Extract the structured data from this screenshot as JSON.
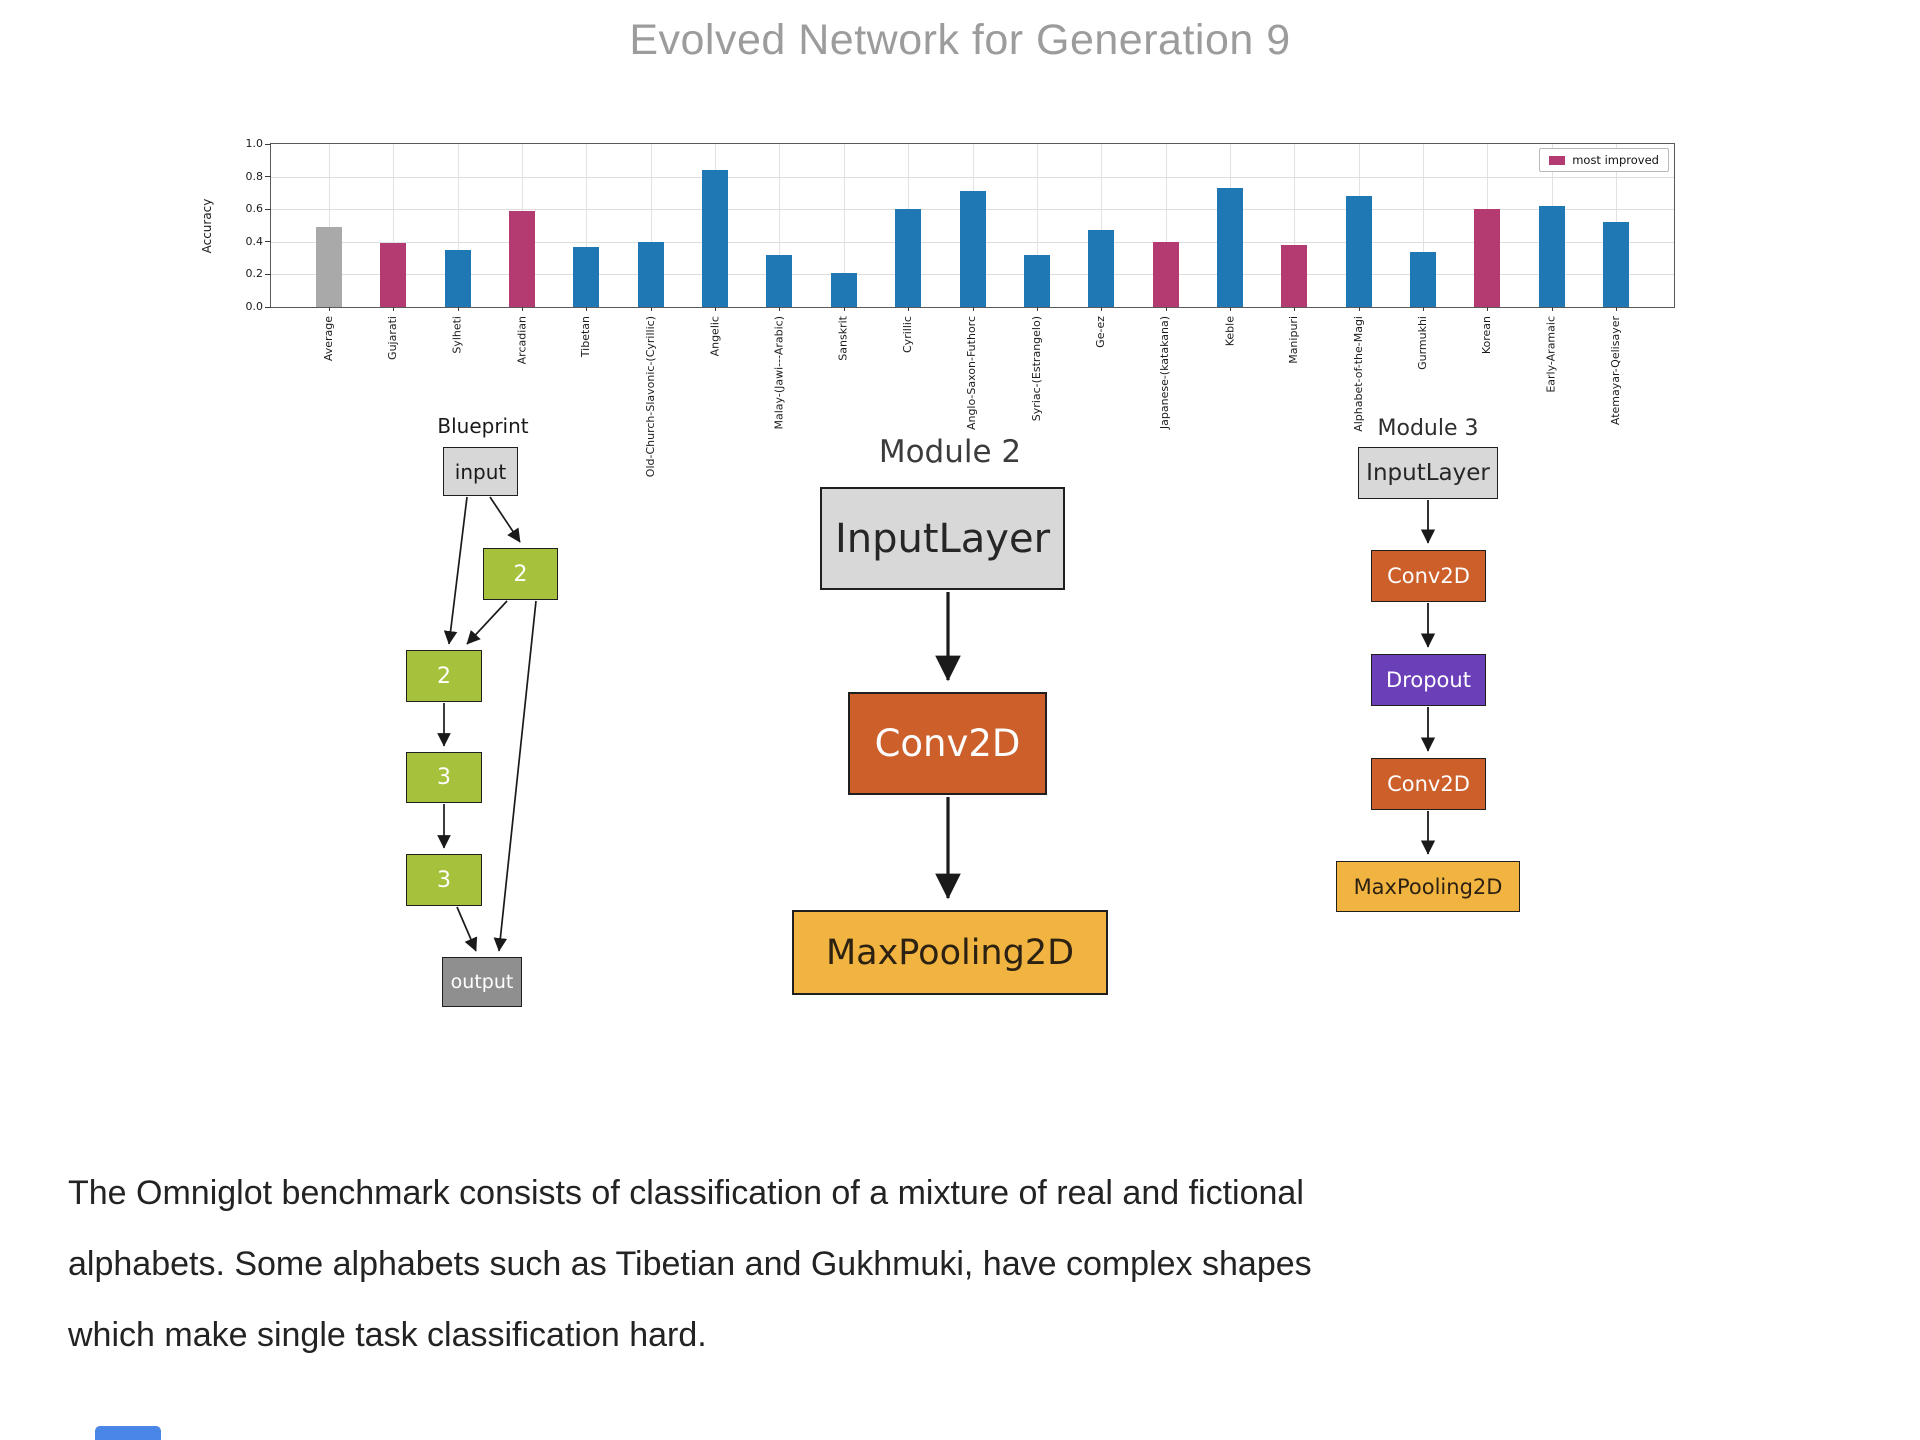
{
  "title": "Evolved Network for Generation 9",
  "chart_data": {
    "type": "bar",
    "title": "",
    "xlabel": "",
    "ylabel": "Accuracy",
    "ylim": [
      0,
      1.0
    ],
    "yticks": [
      "0.0",
      "0.2",
      "0.4",
      "0.6",
      "0.8",
      "1.0"
    ],
    "grid": true,
    "legend_position": "upper right",
    "legend": [
      {
        "label": "most improved",
        "color_key": "highlight"
      }
    ],
    "palette": {
      "default": "#1f77b4",
      "highlight": "#b33b72",
      "average": "#a9a9a9"
    },
    "categories": [
      "Average",
      "Gujarati",
      "Sylheti",
      "Arcadian",
      "Tibetan",
      "Old-Church-Slavonic-(Cyrillic)",
      "Angelic",
      "Malay-(Jawi---Arabic)",
      "Sanskrit",
      "Cyrillic",
      "Anglo-Saxon-Futhorc",
      "Syriac-(Estrangelo)",
      "Ge-ez",
      "Japanese-(katakana)",
      "Keble",
      "Manipuri",
      "Alphabet-of-the-Magi",
      "Gurmukhi",
      "Korean",
      "Early-Aramaic",
      "Atemayar-Qelisayer"
    ],
    "values": [
      0.49,
      0.39,
      0.35,
      0.59,
      0.37,
      0.4,
      0.84,
      0.32,
      0.21,
      0.6,
      0.71,
      0.32,
      0.475,
      0.4,
      0.73,
      0.38,
      0.68,
      0.34,
      0.6,
      0.62,
      0.52
    ],
    "bar_colors": [
      "average",
      "highlight",
      "default",
      "highlight",
      "default",
      "default",
      "default",
      "default",
      "default",
      "default",
      "default",
      "default",
      "default",
      "highlight",
      "default",
      "highlight",
      "default",
      "default",
      "highlight",
      "default",
      "default"
    ]
  },
  "diagrams": {
    "node_palette": {
      "io": {
        "bg": "#d7d7d7",
        "fg": "#1a1a1a"
      },
      "module": {
        "bg": "#a6c13c",
        "fg": "#ffffff"
      },
      "output": {
        "bg": "#8f8f8f",
        "fg": "#ffffff"
      },
      "input": {
        "bg": "#d8d8d8",
        "fg": "#262626"
      },
      "conv": {
        "bg": "#cc5f2a",
        "fg": "#fdfdfd"
      },
      "dropout": {
        "bg": "#6a3fb8",
        "fg": "#ffffff"
      },
      "pool": {
        "bg": "#f2b441",
        "fg": "#2d2212"
      }
    },
    "blueprint": {
      "title": "Blueprint",
      "nodes": [
        {
          "label": "input",
          "type": "io"
        },
        {
          "label": "2",
          "type": "module"
        },
        {
          "label": "2",
          "type": "module"
        },
        {
          "label": "3",
          "type": "module"
        },
        {
          "label": "3",
          "type": "module"
        },
        {
          "label": "output",
          "type": "output"
        }
      ]
    },
    "module2": {
      "title": "Module 2",
      "layers": [
        {
          "label": "InputLayer",
          "type": "input"
        },
        {
          "label": "Conv2D",
          "type": "conv"
        },
        {
          "label": "MaxPooling2D",
          "type": "pool"
        }
      ]
    },
    "module3": {
      "title": "Module 3",
      "layers": [
        {
          "label": "InputLayer",
          "type": "input"
        },
        {
          "label": "Conv2D",
          "type": "conv"
        },
        {
          "label": "Dropout",
          "type": "dropout"
        },
        {
          "label": "Conv2D",
          "type": "conv"
        },
        {
          "label": "MaxPooling2D",
          "type": "pool"
        }
      ]
    }
  },
  "caption": {
    "text": "The Omniglot benchmark consists of classification of a mixture of real and fictional\nalphabets. Some alphabets such as Tibetian and Gukhmuki, have complex shapes\nwhich make single task classification hard."
  },
  "partial_button": {
    "color": "#4a86e8"
  }
}
